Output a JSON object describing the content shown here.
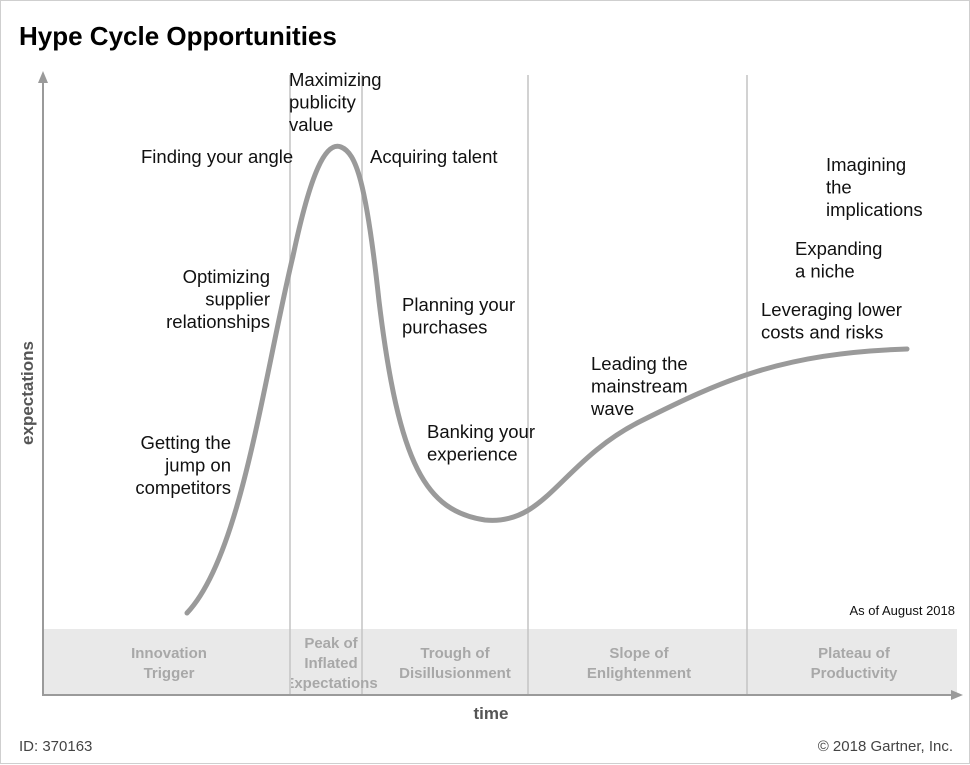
{
  "title": "Hype Cycle Opportunities",
  "y_axis_label": "expectations",
  "x_axis_label": "time",
  "as_of": "As of August 2018",
  "footer": {
    "id": "ID: 370163",
    "copyright": "© 2018 Gartner, Inc."
  },
  "phases": [
    {
      "lines": [
        "Innovation",
        "Trigger"
      ]
    },
    {
      "lines": [
        "Peak of",
        "Inflated",
        "Expectations"
      ]
    },
    {
      "lines": [
        "Trough of",
        "Disillusionment"
      ]
    },
    {
      "lines": [
        "Slope of",
        "Enlightenment"
      ]
    },
    {
      "lines": [
        "Plateau of",
        "Productivity"
      ]
    }
  ],
  "annotations": [
    {
      "lines": [
        "Maximizing",
        "publicity",
        "value"
      ]
    },
    {
      "lines": [
        "Finding your angle"
      ]
    },
    {
      "lines": [
        "Acquiring talent"
      ]
    },
    {
      "lines": [
        "Optimizing",
        "supplier",
        "relationships"
      ]
    },
    {
      "lines": [
        "Planning your",
        "purchases"
      ]
    },
    {
      "lines": [
        "Getting the",
        "jump on",
        "competitors"
      ]
    },
    {
      "lines": [
        "Banking your",
        "experience"
      ]
    },
    {
      "lines": [
        "Leading the",
        "mainstream",
        "wave"
      ]
    },
    {
      "lines": [
        "Leveraging lower",
        "costs and risks"
      ]
    },
    {
      "lines": [
        "Expanding",
        "a niche"
      ]
    },
    {
      "lines": [
        "Imagining",
        "the",
        "implications"
      ]
    }
  ],
  "colors": {
    "curve": "#9a9a9a",
    "axis": "#9a9a9a",
    "divider": "#c4c4c4",
    "band": "#e9e9e9",
    "phase_text": "#a8a8a8"
  }
}
